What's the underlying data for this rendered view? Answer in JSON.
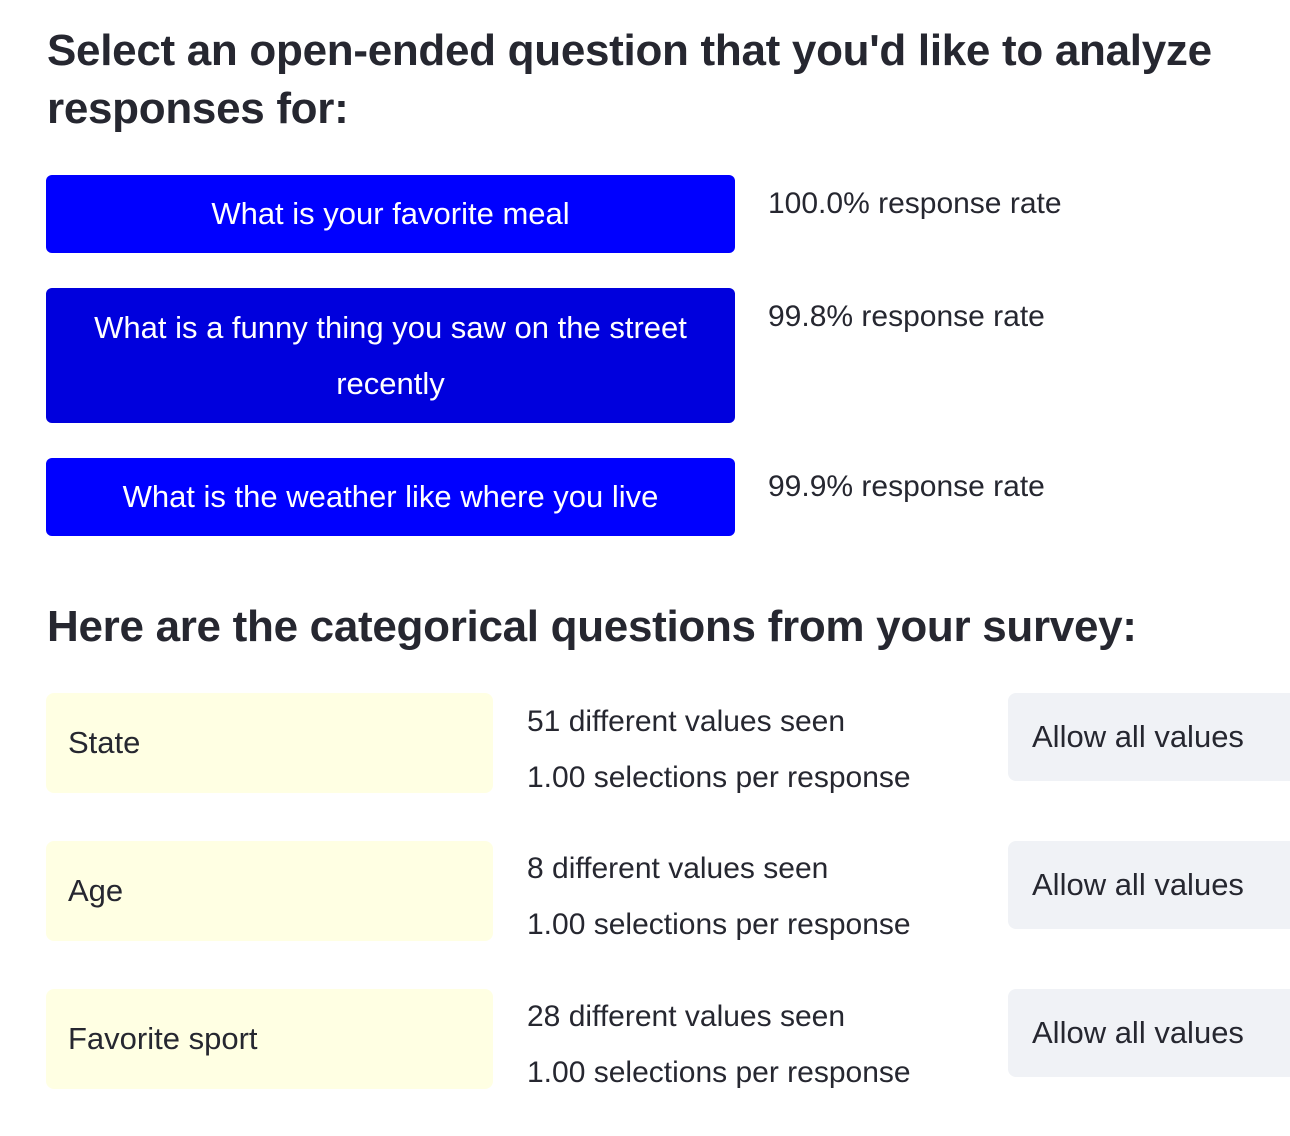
{
  "colors": {
    "primary_button": "#0000ff",
    "primary_button_alt": "#0000dd",
    "category_box": "#ffffe3",
    "allow_button": "#f0f2f6",
    "text": "#262730"
  },
  "open_ended": {
    "heading": "Select an open-ended question that you'd like to analyze responses for:",
    "questions": [
      {
        "label": "What is your favorite meal",
        "rate": "100.0% response rate"
      },
      {
        "label": "What is a funny thing you saw on the street recently",
        "rate": "99.8% response rate"
      },
      {
        "label": "What is the weather like where you live",
        "rate": "99.9% response rate"
      }
    ]
  },
  "categorical": {
    "heading": "Here are the categorical questions from your survey:",
    "questions": [
      {
        "name": "State",
        "values_seen": "51 different values seen",
        "selections": "1.00 selections per response",
        "button": "Allow all values"
      },
      {
        "name": "Age",
        "values_seen": "8 different values seen",
        "selections": "1.00 selections per response",
        "button": "Allow all values"
      },
      {
        "name": "Favorite sport",
        "values_seen": "28 different values seen",
        "selections": "1.00 selections per response",
        "button": "Allow all values"
      }
    ]
  }
}
